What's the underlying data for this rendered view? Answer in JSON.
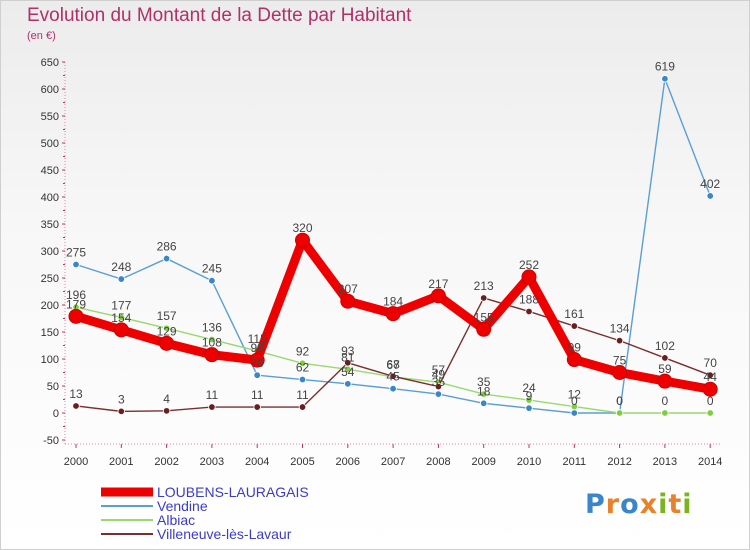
{
  "header": {
    "title": "Evolution du Montant de la Dette par Habitant",
    "subtitle": "(en €)"
  },
  "logo": {
    "text": "Proxiti",
    "colors": [
      "#3a86c8",
      "#e8812a",
      "#3a86c8",
      "#e8812a",
      "#7ab51d",
      "#e8812a",
      "#7ab51d"
    ]
  },
  "chart_data": {
    "type": "line",
    "title": "Evolution du Montant de la Dette par Habitant",
    "unit": "(en €)",
    "categories": [
      "2000",
      "2001",
      "2002",
      "2003",
      "2004",
      "2005",
      "2006",
      "2007",
      "2008",
      "2009",
      "2010",
      "2011",
      "2012",
      "2013",
      "2014"
    ],
    "ylim": [
      -50,
      650
    ],
    "yticks": [
      -50,
      0,
      50,
      100,
      150,
      200,
      250,
      300,
      350,
      400,
      450,
      500,
      550,
      600,
      650
    ],
    "grid": false,
    "legend_position": "bottom-left",
    "series": [
      {
        "name": "LOUBENS-LAURAGAIS",
        "color": "#ee0000",
        "marker_color": "#ee0000",
        "label_color": "#444444",
        "bold": true,
        "values": [
          179,
          154,
          129,
          108,
          98,
          320,
          207,
          184,
          217,
          155,
          252,
          99,
          75,
          59,
          44
        ],
        "labels": [
          "179",
          "154",
          "129",
          "108",
          "98",
          "320",
          "207",
          "184",
          "217",
          "155",
          "252",
          "99",
          "75",
          "59",
          "44"
        ]
      },
      {
        "name": "Vendine",
        "color": "#5a9fd4",
        "marker_color": "#3a86c8",
        "label_color": "#444444",
        "bold": false,
        "values": [
          275,
          248,
          286,
          245,
          70,
          62,
          54,
          45,
          35,
          18,
          9,
          0,
          0,
          619,
          402
        ],
        "labels": [
          "275",
          "248",
          "286",
          "245",
          "70",
          "62",
          "54",
          "45",
          "35",
          "18",
          "9",
          "0",
          "0",
          "619",
          "402"
        ]
      },
      {
        "name": "Albiac",
        "color": "#99d96e",
        "marker_color": "#7ccf3e",
        "label_color": "#444444",
        "bold": false,
        "values": [
          196,
          177,
          157,
          136,
          115,
          92,
          81,
          67,
          57,
          35,
          24,
          12,
          0,
          0,
          0
        ],
        "labels": [
          "196",
          "177",
          "157",
          "136",
          "115",
          "92",
          "81",
          "67",
          "57",
          "35",
          "24",
          "12",
          "0",
          "0",
          "0"
        ]
      },
      {
        "name": "Villeneuve-lès-Lavaur",
        "color": "#7a2e2e",
        "marker_color": "#6b1e1e",
        "label_color": "#444444",
        "bold": false,
        "values": [
          13,
          3,
          4,
          11,
          11,
          11,
          93,
          68,
          49,
          213,
          188,
          161,
          134,
          102,
          70
        ],
        "labels": [
          "13",
          "3",
          "4",
          "11",
          "11",
          "11",
          "93",
          "68",
          "49",
          "213",
          "188",
          "161",
          "134",
          "102",
          "70"
        ]
      }
    ]
  }
}
